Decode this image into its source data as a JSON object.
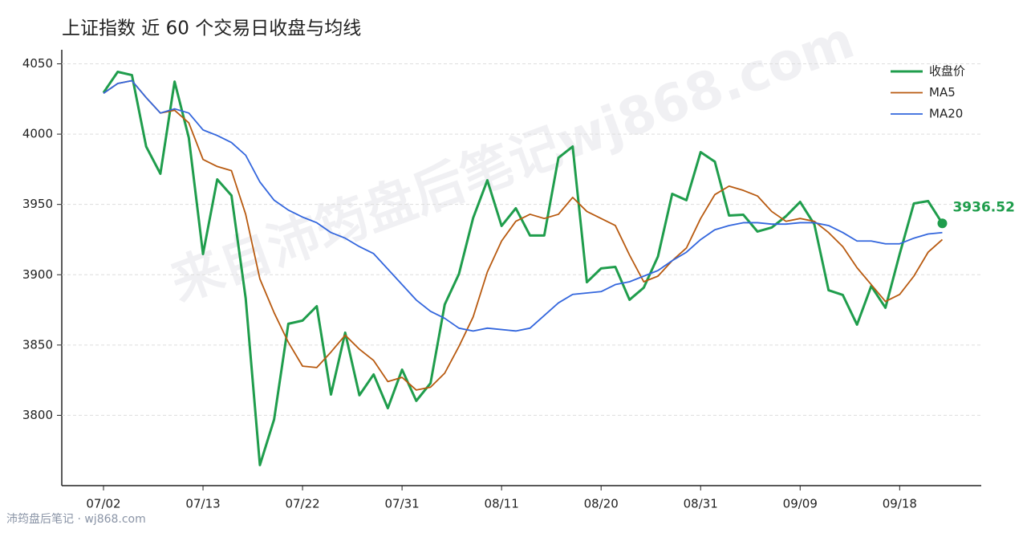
{
  "chart_data": {
    "type": "line",
    "title": "上证指数 近 60 个交易日收盘与均线",
    "watermark": "来自沛筠盘后笔记wj868.com",
    "footer": "沛筠盘后笔记 · wj868.com",
    "categories": [
      "07/02",
      null,
      null,
      null,
      null,
      null,
      null,
      "07/13",
      null,
      null,
      null,
      null,
      null,
      null,
      "07/22",
      null,
      null,
      null,
      null,
      null,
      null,
      "07/31",
      null,
      null,
      null,
      null,
      null,
      null,
      "08/11",
      null,
      null,
      null,
      null,
      null,
      null,
      "08/20",
      null,
      null,
      null,
      null,
      null,
      null,
      "08/31",
      null,
      null,
      null,
      null,
      null,
      null,
      "09/09",
      null,
      null,
      null,
      null,
      null,
      null,
      "09/18",
      null,
      null,
      null
    ],
    "series": [
      {
        "name": "收盘价",
        "color": "#1f9d4c",
        "width": 3,
        "values": [
          4029.5,
          4044.3,
          4042,
          3991.2,
          3971.8,
          4037.4,
          3997.5,
          3914.7,
          3967.8,
          3956.4,
          3883.3,
          3764.6,
          3797.1,
          3865.1,
          3867.4,
          3877.6,
          3814.8,
          3858.8,
          3814.3,
          3829.1,
          3805.1,
          3832.5,
          3810.3,
          3822.8,
          3878.8,
          3900.5,
          3940.4,
          3967.2,
          3934.7,
          3947.3,
          3927.9,
          3927.9,
          3983.2,
          3991.2,
          3894.7,
          3904.5,
          3905.6,
          3882.2,
          3890.8,
          3913,
          3957.5,
          3953,
          3987.2,
          3980.4,
          3942.1,
          3942.7,
          3930.7,
          3933.6,
          3941.6,
          3951.8,
          3935.8,
          3889,
          3885.6,
          3864.5,
          3891.9,
          3876.5,
          3914.7,
          3950.7,
          3952.4,
          3936.52
        ]
      },
      {
        "name": "MA5",
        "color": "#b85a10",
        "width": 1.8,
        "values": [
          4029,
          4036,
          4038,
          4026,
          4015,
          4017,
          4008,
          3982,
          3977,
          3974,
          3943,
          3897,
          3873,
          3852,
          3835,
          3834,
          3845,
          3857,
          3847,
          3839,
          3824,
          3827,
          3818,
          3820,
          3830,
          3849,
          3870,
          3902,
          3924,
          3938,
          3943,
          3940,
          3943,
          3955,
          3945,
          3940,
          3935,
          3914,
          3895,
          3899,
          3910,
          3919,
          3940,
          3957,
          3963,
          3960,
          3956,
          3945,
          3938,
          3940,
          3938,
          3930,
          3920,
          3905,
          3893,
          3881,
          3886,
          3899,
          3916,
          3925
        ]
      },
      {
        "name": "MA20",
        "color": "#3366dd",
        "width": 1.8,
        "values": [
          4029,
          4036,
          4038,
          4026,
          4015,
          4018,
          4015,
          4003,
          3999,
          3994,
          3985,
          3966,
          3953,
          3946,
          3941,
          3937,
          3930,
          3926,
          3920,
          3915,
          3904,
          3893,
          3882,
          3874,
          3869,
          3862,
          3860,
          3862,
          3861,
          3860,
          3862,
          3871,
          3880,
          3886,
          3887,
          3888,
          3893,
          3895,
          3899,
          3903,
          3910,
          3916,
          3925,
          3932,
          3935,
          3937,
          3937,
          3936,
          3936,
          3937,
          3937,
          3935,
          3930,
          3924,
          3924,
          3922,
          3922,
          3926,
          3929,
          3930
        ]
      }
    ],
    "ylim": [
      3750,
      4060
    ],
    "yticks": [
      3800,
      3850,
      3900,
      3950,
      4000,
      4050
    ],
    "grid": true,
    "legend": "upper right"
  }
}
